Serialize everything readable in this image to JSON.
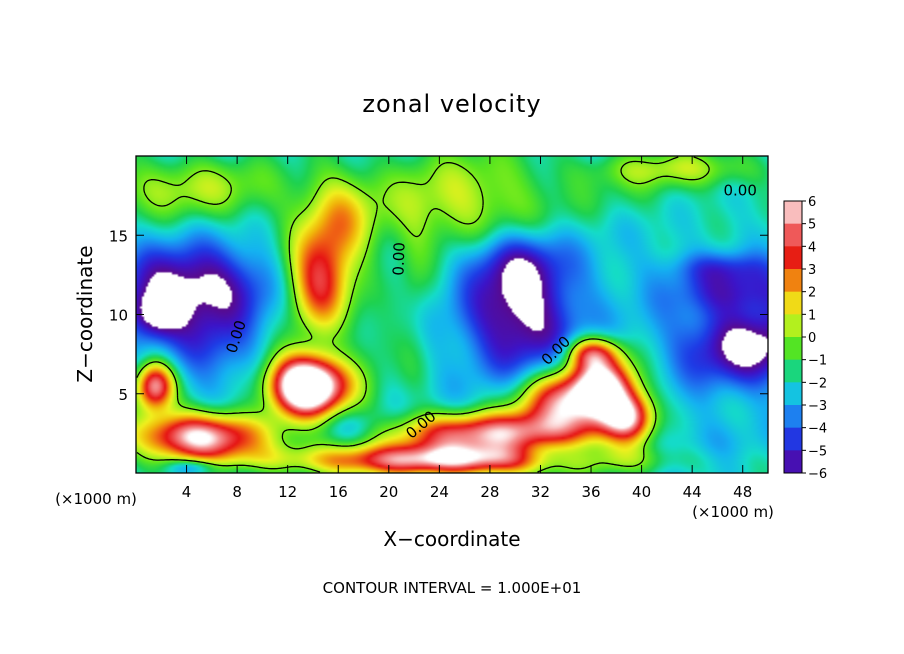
{
  "chart_data": {
    "type": "heatmap",
    "title": "zonal velocity",
    "xlabel": "X−coordinate",
    "ylabel": "Z−coordinate",
    "x_unit_left": "(×1000 m)",
    "x_unit_right": "(×1000 m)",
    "xlim": [
      0,
      50
    ],
    "ylim": [
      0,
      20
    ],
    "x_ticks": [
      {
        "value": 4,
        "label": "4"
      },
      {
        "value": 8,
        "label": "8"
      },
      {
        "value": 12,
        "label": "12"
      },
      {
        "value": 16,
        "label": "16"
      },
      {
        "value": 20,
        "label": "20"
      },
      {
        "value": 24,
        "label": "24"
      },
      {
        "value": 28,
        "label": "28"
      },
      {
        "value": 32,
        "label": "32"
      },
      {
        "value": 36,
        "label": "36"
      },
      {
        "value": 40,
        "label": "40"
      },
      {
        "value": 44,
        "label": "44"
      },
      {
        "value": 48,
        "label": "48"
      }
    ],
    "y_ticks": [
      {
        "value": 5,
        "label": "5"
      },
      {
        "value": 10,
        "label": "10"
      },
      {
        "value": 15,
        "label": "15"
      }
    ],
    "colorbar": {
      "range": [
        -6,
        6
      ],
      "labels": [
        "6",
        "5",
        "4",
        "3",
        "2",
        "1",
        "0",
        "−1",
        "−2",
        "−3",
        "−4",
        "−5",
        "−6"
      ],
      "colors": [
        "#5a0a8c",
        "#3c14c8",
        "#1e3ce6",
        "#1e78f0",
        "#14b4f0",
        "#14dcc8",
        "#1ed250",
        "#5ae61e",
        "#aaf01e",
        "#f0f01e",
        "#f0b40a",
        "#f06414",
        "#e61414",
        "#ee5050",
        "#f59696",
        "#ffffff"
      ],
      "over_color": "#ffffff"
    },
    "zero_contour_label": "0.00",
    "zero_contour_labels": [
      {
        "x": 8.3,
        "y": 8.5,
        "rot": -72
      },
      {
        "x": 21.2,
        "y": 13.5,
        "rot": -88
      },
      {
        "x": 22.8,
        "y": 2.8,
        "rot": -40
      },
      {
        "x": 33.5,
        "y": 7.5,
        "rot": -45
      },
      {
        "x": 47.8,
        "y": 17.5,
        "rot": 0
      }
    ],
    "blobs": [
      {
        "x": 14.5,
        "y": 12,
        "rx": 2.6,
        "ry": 3,
        "v": 4.6
      },
      {
        "x": 16,
        "y": 16,
        "rx": 3,
        "ry": 3,
        "v": 1.5
      },
      {
        "x": 13,
        "y": 5.5,
        "rx": 2.5,
        "ry": 2,
        "v": 3
      },
      {
        "x": 5,
        "y": 2.3,
        "rx": 5,
        "ry": 1.5,
        "v": 7
      },
      {
        "x": 14,
        "y": 5.5,
        "rx": 3.2,
        "ry": 1.8,
        "v": 7
      },
      {
        "x": 1.5,
        "y": 5.5,
        "rx": 1.5,
        "ry": 1.5,
        "v": 6
      },
      {
        "x": 25,
        "y": 0.8,
        "rx": 13,
        "ry": 1,
        "v": 6
      },
      {
        "x": 28,
        "y": 2.5,
        "rx": 8,
        "ry": 1.3,
        "v": 5.6
      },
      {
        "x": 34,
        "y": 4.5,
        "rx": 4,
        "ry": 2,
        "v": 5.5
      },
      {
        "x": 37,
        "y": 5.5,
        "rx": 2.5,
        "ry": 2,
        "v": 6
      },
      {
        "x": 39,
        "y": 3.5,
        "rx": 2,
        "ry": 1.5,
        "v": 5
      },
      {
        "x": 36,
        "y": 7.6,
        "rx": 2,
        "ry": 1,
        "v": 3
      },
      {
        "x": 4.5,
        "y": 11.8,
        "rx": 6,
        "ry": 2.5,
        "v": -7
      },
      {
        "x": 6,
        "y": 8,
        "rx": 3.5,
        "ry": 2.5,
        "v": -4.5
      },
      {
        "x": 1.5,
        "y": 10,
        "rx": 2,
        "ry": 1.5,
        "v": -6
      },
      {
        "x": 30.5,
        "y": 10,
        "rx": 4.5,
        "ry": 4.2,
        "v": -7
      },
      {
        "x": 29.5,
        "y": 13.5,
        "rx": 4,
        "ry": 2,
        "v": -4.5
      },
      {
        "x": 48.5,
        "y": 8,
        "rx": 5.5,
        "ry": 2.5,
        "v": -7
      },
      {
        "x": 48,
        "y": 11.5,
        "rx": 5,
        "ry": 1.5,
        "v": -5
      },
      {
        "x": 46.5,
        "y": 13,
        "rx": 4,
        "ry": 1,
        "v": -4
      },
      {
        "x": 22,
        "y": 11,
        "rx": 1.4,
        "ry": 6,
        "v": -1.2
      },
      {
        "x": 4,
        "y": 18,
        "rx": 8,
        "ry": 2,
        "v": 0.6
      },
      {
        "x": 26,
        "y": 17,
        "rx": 7,
        "ry": 3.5,
        "v": 1.1
      },
      {
        "x": 40,
        "y": 17.5,
        "rx": 6,
        "ry": 1.8,
        "v": -1.5
      },
      {
        "x": 43,
        "y": 19.2,
        "rx": 7,
        "ry": 1.2,
        "v": 0.5
      },
      {
        "x": 41,
        "y": 12.5,
        "rx": 4,
        "ry": 3,
        "v": -2.5
      },
      {
        "x": 17,
        "y": 3,
        "rx": 3,
        "ry": 1,
        "v": -3.5
      },
      {
        "x": 19,
        "y": 8,
        "rx": 2,
        "ry": 2,
        "v": -1
      },
      {
        "x": 43.5,
        "y": 2,
        "rx": 5,
        "ry": 2,
        "v": -3
      },
      {
        "x": 33.5,
        "y": 1,
        "rx": 3.5,
        "ry": 1,
        "v": -6
      },
      {
        "x": 4.5,
        "y": 0.4,
        "rx": 2,
        "ry": 0.5,
        "v": -5
      },
      {
        "x": 10,
        "y": 16,
        "rx": 4,
        "ry": 2,
        "v": -2
      }
    ],
    "background_value": -2.2,
    "annotation": "CONTOUR INTERVAL = 1.000E+01"
  }
}
